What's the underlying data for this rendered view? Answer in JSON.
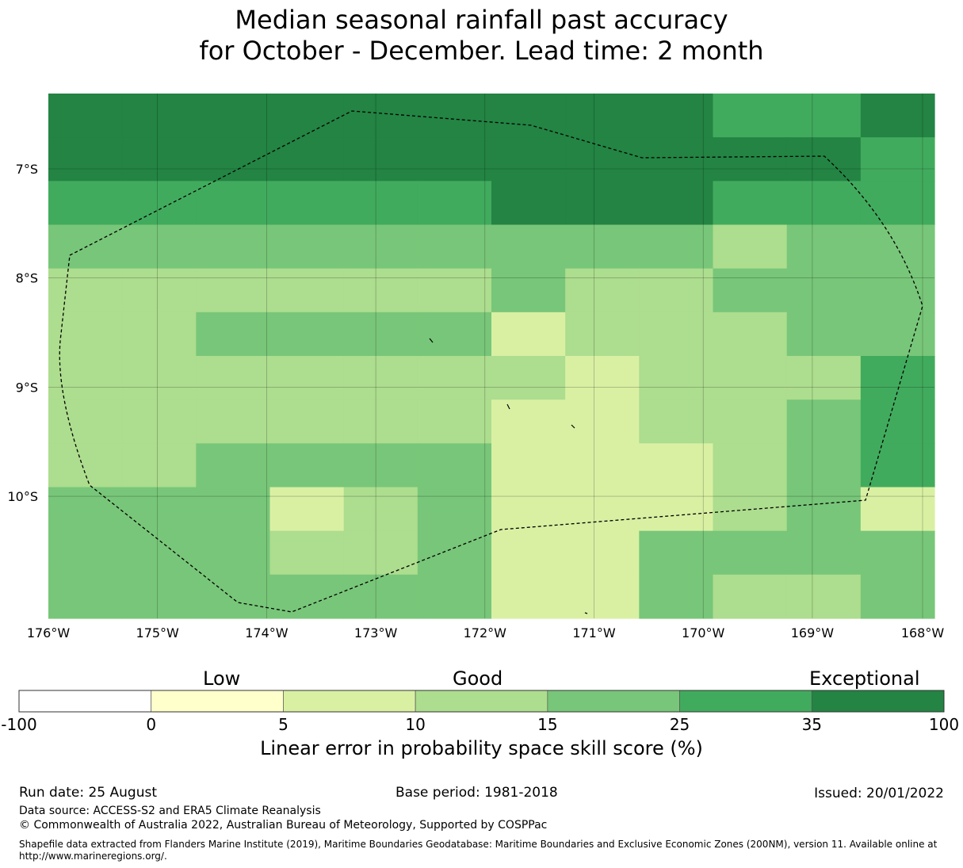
{
  "title": {
    "line1": "Median seasonal rainfall past accuracy",
    "line2": "for October - December. Lead time: 2 month"
  },
  "map": {
    "lat_ticks": [
      "7°S",
      "8°S",
      "9°S",
      "10°S"
    ],
    "lon_ticks": [
      "176°W",
      "175°W",
      "174°W",
      "173°W",
      "172°W",
      "171°W",
      "170°W",
      "169°W",
      "168°W"
    ],
    "colors": {
      "0": "#ffffcc",
      "1": "#d9f0a3",
      "2": "#addd8e",
      "3": "#78c679",
      "4": "#41ab5d",
      "5": "#238443"
    },
    "grid_rows": [
      "555555555445",
      "555555555554",
      "444444555444",
      "333333333233",
      "222222322333",
      "223333122233",
      "222222212224",
      "222222112234",
      "223333111234",
      "333123111231",
      "333223113333",
      "333333113223"
    ]
  },
  "legend": {
    "categories": [
      "Low",
      "Good",
      "Exceptional"
    ],
    "ticks": [
      "-100",
      "0",
      "5",
      "10",
      "15",
      "25",
      "35",
      "100"
    ],
    "colors": [
      "#ffffff",
      "#ffffcc",
      "#d9f0a3",
      "#addd8e",
      "#78c679",
      "#41ab5d",
      "#238443"
    ],
    "title": "Linear error in probability space skill score (%)"
  },
  "footer": {
    "run_date": "Run date: 25 August",
    "base_period": "Base period: 1981-2018",
    "issued": "Issued: 20/01/2022",
    "data_source": "Data source: ACCESS-S2 and ERA5 Climate Reanalysis",
    "copyright": "© Commonwealth of Australia 2022, Australian Bureau of Meteorology, Supported by COSPPac",
    "shapefile_line1": "Shapefile data extracted from Flanders Marine Institute (2019), Maritime Boundaries Geodatabase: Maritime Boundaries and Exclusive Economic Zones (200NM), version 11. Available online at",
    "shapefile_line2": "http://www.marineregions.org/."
  }
}
